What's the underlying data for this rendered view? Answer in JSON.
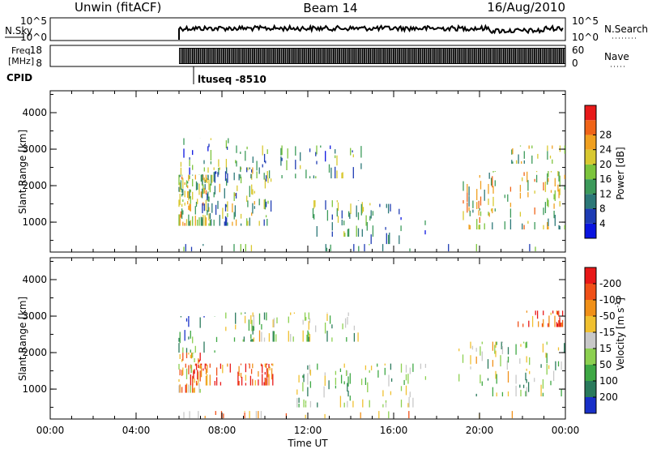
{
  "header": {
    "left": "Unwin (fitACF)",
    "center": "Beam 14",
    "right": "16/Aug/2010"
  },
  "top_panels": {
    "nsky_label": "N.Sky",
    "nsky_ticks": [
      "10^5",
      "10^0"
    ],
    "nsearch_label": "N.Search",
    "freq_label_line1": "Freq.",
    "freq_label_line2": "[MHz]",
    "freq_ticks": [
      "18",
      "8"
    ],
    "nave_ticks": [
      "60",
      "0"
    ],
    "nave_label": "Nave",
    "cpid_label": "CPID",
    "cpid_value": "ltuseq -8510"
  },
  "chart_data": [
    {
      "type": "heatmap",
      "name": "power",
      "ylabel": "Slant Range [km]",
      "yticks": [
        1000,
        2000,
        3000,
        4000
      ],
      "ylim": [
        180,
        4600
      ],
      "xlim": [
        0,
        24
      ],
      "colorbar": {
        "label": "Power [dB]",
        "ticks": [
          "4",
          "8",
          "12",
          "16",
          "20",
          "24",
          "28"
        ],
        "colors": [
          "#0a14e0",
          "#1e3cb4",
          "#2c7878",
          "#3c9a5a",
          "#7cc43c",
          "#d8c830",
          "#f0a020",
          "#f06418",
          "#e81a1a"
        ]
      },
      "echo_regions": [
        {
          "t0": 6.0,
          "t1": 7.4,
          "r0": 900,
          "r1": 2300,
          "density": 0.8,
          "pmean": 0.55
        },
        {
          "t0": 6.0,
          "t1": 8.4,
          "r0": 2300,
          "r1": 3300,
          "density": 0.3,
          "pmean": 0.35
        },
        {
          "t0": 7.0,
          "t1": 10.4,
          "r0": 900,
          "r1": 2500,
          "density": 0.5,
          "pmean": 0.45
        },
        {
          "t0": 8.5,
          "t1": 14.5,
          "r0": 2200,
          "r1": 3100,
          "density": 0.35,
          "pmean": 0.35
        },
        {
          "t0": 12.2,
          "t1": 15.2,
          "r0": 600,
          "r1": 1600,
          "density": 0.45,
          "pmean": 0.4
        },
        {
          "t0": 14.5,
          "t1": 17.5,
          "r0": 400,
          "r1": 1500,
          "density": 0.3,
          "pmean": 0.25
        },
        {
          "t0": 19.2,
          "t1": 24.0,
          "r0": 800,
          "r1": 2400,
          "density": 0.45,
          "pmean": 0.55
        },
        {
          "t0": 21.5,
          "t1": 24.0,
          "r0": 2600,
          "r1": 3100,
          "density": 0.35,
          "pmean": 0.5
        },
        {
          "t0": 6.0,
          "t1": 24.0,
          "r0": 200,
          "r1": 400,
          "density": 0.2,
          "pmean": 0.3
        }
      ]
    },
    {
      "type": "heatmap",
      "name": "velocity",
      "ylabel": "Slant Range [km]",
      "xlabel": "Time UT",
      "yticks": [
        1000,
        2000,
        3000,
        4000
      ],
      "ylim": [
        180,
        4600
      ],
      "xlim": [
        0,
        24
      ],
      "xticks": [
        "00:00",
        "04:00",
        "08:00",
        "12:00",
        "16:00",
        "20:00",
        "00:00"
      ],
      "colorbar": {
        "label": "Velocity [m s",
        "label_sup": "-1",
        "label_end": "]",
        "ticks": [
          "200",
          "100",
          "50",
          "15",
          "-15",
          "-50",
          "-100",
          "-200"
        ],
        "colors": [
          "#1830c8",
          "#2a7a5c",
          "#3ea844",
          "#8cd050",
          "#c8c8c8",
          "#f0c030",
          "#f09018",
          "#f05018",
          "#e81818"
        ]
      },
      "echo_regions": [
        {
          "t0": 6.0,
          "t1": 7.0,
          "r0": 900,
          "r1": 2000,
          "density": 0.7,
          "vmean": 0.65
        },
        {
          "t0": 6.5,
          "t1": 10.4,
          "r0": 1100,
          "r1": 1700,
          "density": 0.6,
          "vmean": 0.85
        },
        {
          "t0": 6.0,
          "t1": 8.0,
          "r0": 2000,
          "r1": 3000,
          "density": 0.35,
          "vmean": 0.1
        },
        {
          "t0": 8.0,
          "t1": 14.5,
          "r0": 2300,
          "r1": 3100,
          "density": 0.35,
          "vmean": 0.4
        },
        {
          "t0": 11.5,
          "t1": 17.5,
          "r0": 500,
          "r1": 1700,
          "density": 0.35,
          "vmean": 0.4
        },
        {
          "t0": 19.0,
          "t1": 24.0,
          "r0": 800,
          "r1": 2300,
          "density": 0.4,
          "vmean": 0.42
        },
        {
          "t0": 21.8,
          "t1": 24.0,
          "r0": 2700,
          "r1": 3150,
          "density": 0.5,
          "vmean": 0.88
        },
        {
          "t0": 6.0,
          "t1": 24.0,
          "r0": 200,
          "r1": 400,
          "density": 0.18,
          "vmean": 0.6
        }
      ]
    }
  ]
}
